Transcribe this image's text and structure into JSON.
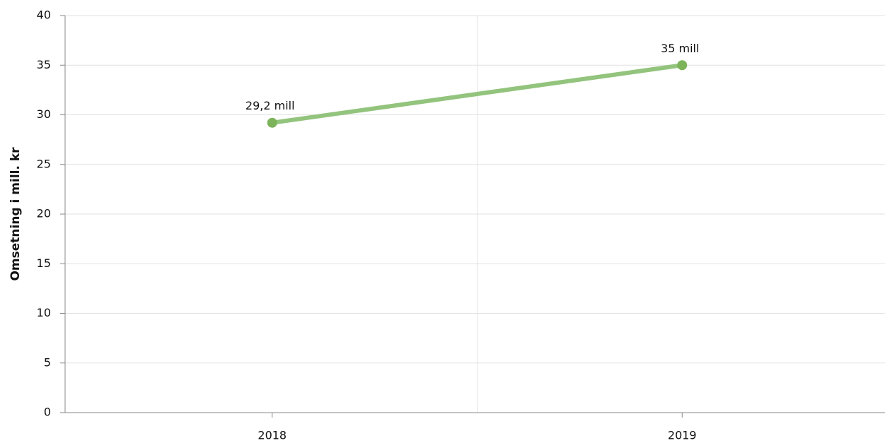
{
  "chart_data": {
    "type": "line",
    "ylabel": "Omsetning i mill. kr",
    "categories": [
      "2018",
      "2019"
    ],
    "series": [
      {
        "name": "Omsetning",
        "color": "#93c47d",
        "values": [
          29.2,
          35
        ],
        "value_labels": [
          "29,2 mill",
          "35 mill"
        ]
      }
    ],
    "ylim": [
      0,
      40
    ],
    "yticks": [
      0,
      5,
      10,
      15,
      20,
      25,
      30,
      35,
      40
    ],
    "grid": true
  }
}
